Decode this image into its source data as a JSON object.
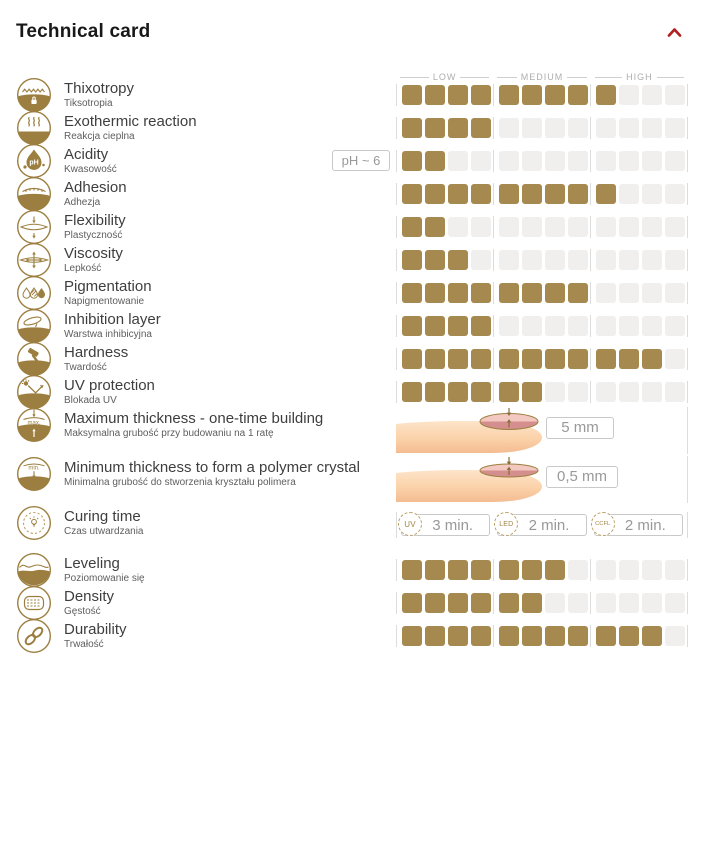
{
  "header": {
    "title": "Technical card",
    "collapse_icon": "chevron-up-icon"
  },
  "palette": {
    "filled_square": "#a5894f",
    "empty_square": "#f0efed",
    "icon_gold": "#9c7f40",
    "accent_red": "#b02020",
    "badge_text": "#999999",
    "badge_border": "#c9c9c9",
    "rail_gray": "#dcdcdc"
  },
  "scale": {
    "max": 12,
    "group_size": 4,
    "group_labels": [
      "LOW",
      "MEDIUM",
      "HIGH"
    ]
  },
  "rows": [
    {
      "type": "scale",
      "icon": "thixotropy-icon",
      "label": "Thixotropy",
      "sublabel": "Tiksotropia",
      "value": 9,
      "show_header": true
    },
    {
      "type": "scale",
      "icon": "exothermic-reaction-icon",
      "label": "Exothermic reaction",
      "sublabel": "Reakcja cieplna",
      "value": 4
    },
    {
      "type": "scale",
      "icon": "acidity-icon",
      "label": "Acidity",
      "sublabel": "Kwasowość",
      "value": 2,
      "badge": "pH ~ 6"
    },
    {
      "type": "scale",
      "icon": "adhesion-icon",
      "label": "Adhesion",
      "sublabel": "Adhezja",
      "value": 9
    },
    {
      "type": "scale",
      "icon": "flexibility-icon",
      "label": "Flexibility",
      "sublabel": "Plastyczność",
      "value": 2
    },
    {
      "type": "scale",
      "icon": "viscosity-icon",
      "label": "Viscosity",
      "sublabel": "Lepkość",
      "value": 3
    },
    {
      "type": "scale",
      "icon": "pigmentation-icon",
      "label": "Pigmentation",
      "sublabel": "Napigmentowanie",
      "value": 8
    },
    {
      "type": "scale",
      "icon": "inhibition-layer-icon",
      "label": "Inhibition layer",
      "sublabel": "Warstwa inhibicyjna",
      "value": 4
    },
    {
      "type": "scale",
      "icon": "hardness-icon",
      "label": "Hardness",
      "sublabel": "Twardość",
      "value": 11
    },
    {
      "type": "scale",
      "icon": "uv-protection-icon",
      "label": "UV protection",
      "sublabel": "Blokada UV",
      "value": 6
    },
    {
      "type": "thickness",
      "icon": "max-thickness-icon",
      "label": "Maximum thickness - one-time building",
      "sublabel": "Maksymalna grubość przy budowaniu na 1 ratę",
      "value_text": "5 mm",
      "gel": "thick"
    },
    {
      "type": "thickness",
      "icon": "min-thickness-icon",
      "label": "Minimum thickness to form a polymer crystal",
      "sublabel": "Minimalna grubość do stworzenia kryształu polimera",
      "value_text": "0,5 mm",
      "gel": "thin"
    },
    {
      "type": "curing",
      "icon": "curing-time-icon",
      "label": "Curing time",
      "sublabel": "Czas utwardzania",
      "times": [
        {
          "lamp": "UV",
          "time": "3 min."
        },
        {
          "lamp": "LED",
          "time": "2 min."
        },
        {
          "lamp": "CCFL",
          "time": "2 min."
        }
      ]
    },
    {
      "type": "scale",
      "icon": "leveling-icon",
      "label": "Leveling",
      "sublabel": "Poziomowanie się",
      "value": 7
    },
    {
      "type": "scale",
      "icon": "density-icon",
      "label": "Density",
      "sublabel": "Gęstość",
      "value": 6
    },
    {
      "type": "scale",
      "icon": "durability-icon",
      "label": "Durability",
      "sublabel": "Trwałość",
      "value": 11
    }
  ]
}
